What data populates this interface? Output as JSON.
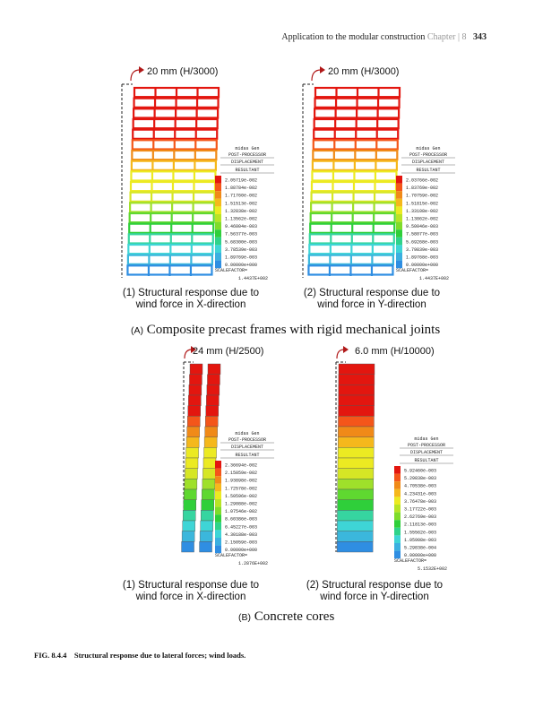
{
  "header": {
    "title": "Application to the modular construction",
    "chapter": "Chapter",
    "chapter_num": "8",
    "page": "343"
  },
  "section_a": {
    "label": "(A)",
    "title": "Composite precast frames with rigid mechanical joints",
    "panel1": {
      "disp": "20 mm (H/3000)",
      "caption_l1": "(1) Structural response due to",
      "caption_l2": "wind force in X-direction"
    },
    "panel2": {
      "disp": "20 mm (H/3000)",
      "caption_l1": "(2) Structural response due to",
      "caption_l2": "wind force in Y-direction"
    }
  },
  "section_b": {
    "label": "(B)",
    "title": "Concrete cores",
    "panel1": {
      "disp": "24 mm (H/2500)",
      "caption_l1": "(1) Structural response due to",
      "caption_l2": "wind force in X-direction"
    },
    "panel2": {
      "disp": "6.0 mm (H/10000)",
      "caption_l1": "(2) Structural response due to",
      "caption_l2": "wind force in Y-direction"
    }
  },
  "legends": [
    {
      "title": "midas Gen",
      "sub1": "POST-PROCESSOR",
      "sub2": "DISPLACEMENT",
      "sub3": "RESULTANT",
      "values": [
        "2.05719e-002",
        "1.88784e-002",
        "1.71760e-002",
        "1.51513e-002",
        "1.32838e-002",
        "1.13562e-002",
        "9.46004e-003",
        "7.56377e-003",
        "5.68300e-003",
        "3.78539e-003",
        "1.89769e-003",
        "0.00000e+000"
      ],
      "sf_label": "SCALEFACTOR=",
      "sf_value": "1.4437E+002"
    },
    {
      "title": "midas Gen",
      "sub1": "POST-PROCESSOR",
      "sub2": "DISPLACEMENT",
      "sub3": "RESULTANT",
      "values": [
        "2.03766e-002",
        "1.83769e-002",
        "1.70759e-002",
        "1.51815e-002",
        "1.33108e-002",
        "1.13862e-002",
        "9.50046e-003",
        "7.58077e-003",
        "5.69268e-003",
        "3.79839e-003",
        "1.89768e-003",
        "0.00000e+000"
      ],
      "sf_label": "SCALEFACTOR=",
      "sf_value": "1.4437E+002"
    },
    {
      "title": "midas Gen",
      "sub1": "POST-PROCESSOR",
      "sub2": "DISPLACEMENT",
      "sub3": "RESULTANT",
      "values": [
        "2.36694e-002",
        "2.15059e-002",
        "1.93898e-002",
        "1.72578e-002",
        "1.50596e-002",
        "1.29088e-002",
        "1.07546e-002",
        "8.60386e-003",
        "6.45227e-003",
        "4.30188e-003",
        "2.15059e-003",
        "0.00000e+000"
      ],
      "sf_label": "SCALEFACTOR=",
      "sf_value": "1.2876E+002"
    },
    {
      "title": "midas Gen",
      "sub1": "POST-PROCESSOR",
      "sub2": "DISPLACEMENT",
      "sub3": "RESULTANT",
      "values": [
        "5.92460e-003",
        "5.29838e-003",
        "4.70538e-003",
        "4.23431e-003",
        "3.76478e-003",
        "3.17722e-003",
        "2.62769e-003",
        "2.11813e-003",
        "1.55562e-003",
        "1.05908e-003",
        "5.29838e-004",
        "0.00000e+000"
      ],
      "sf_label": "SCALEFACTOR=",
      "sf_value": "5.1532E+002"
    }
  ],
  "figure_caption": {
    "label": "FIG. 8.4.4",
    "text": "Structural response due to lateral forces; wind loads."
  },
  "colors": {
    "red": "#e3160f",
    "orange": "#f08a18",
    "yellow": "#ecea22",
    "green": "#2fcf3a",
    "cyan": "#3ed5d6",
    "blue": "#2f8ee2"
  }
}
